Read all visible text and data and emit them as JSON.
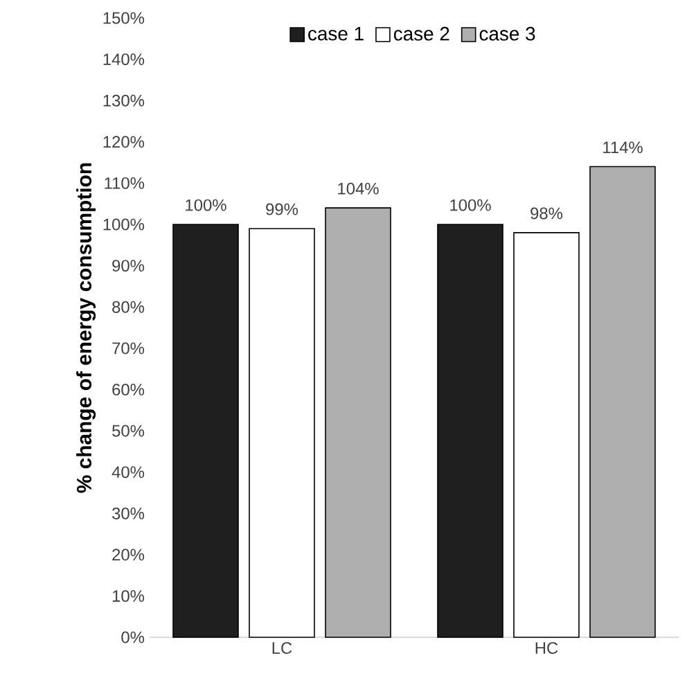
{
  "chart_data": {
    "type": "bar",
    "ylabel": "% change of energy consumption",
    "categories": [
      "LC",
      "HC"
    ],
    "series": [
      {
        "name": "case 1",
        "color": "#1f1f1f",
        "values": [
          100,
          100
        ],
        "value_labels": [
          "100%",
          "100%"
        ]
      },
      {
        "name": "case 2",
        "color": "#ffffff",
        "values": [
          99,
          98
        ],
        "value_labels": [
          "99%",
          "98%"
        ]
      },
      {
        "name": "case 3",
        "color": "#afafaf",
        "values": [
          104,
          114
        ],
        "value_labels": [
          "104%",
          "114%"
        ]
      }
    ],
    "ylim": [
      0,
      150
    ],
    "yticks": [
      {
        "value": 0,
        "label": "0%"
      },
      {
        "value": 10,
        "label": "10%"
      },
      {
        "value": 20,
        "label": "20%"
      },
      {
        "value": 30,
        "label": "30%"
      },
      {
        "value": 40,
        "label": "40%"
      },
      {
        "value": 50,
        "label": "50%"
      },
      {
        "value": 60,
        "label": "60%"
      },
      {
        "value": 70,
        "label": "70%"
      },
      {
        "value": 80,
        "label": "80%"
      },
      {
        "value": 90,
        "label": "90%"
      },
      {
        "value": 100,
        "label": "100%"
      },
      {
        "value": 110,
        "label": "110%"
      },
      {
        "value": 120,
        "label": "120%"
      },
      {
        "value": 130,
        "label": "130%"
      },
      {
        "value": 140,
        "label": "140%"
      },
      {
        "value": 150,
        "label": "150%"
      }
    ],
    "legend": "top"
  }
}
